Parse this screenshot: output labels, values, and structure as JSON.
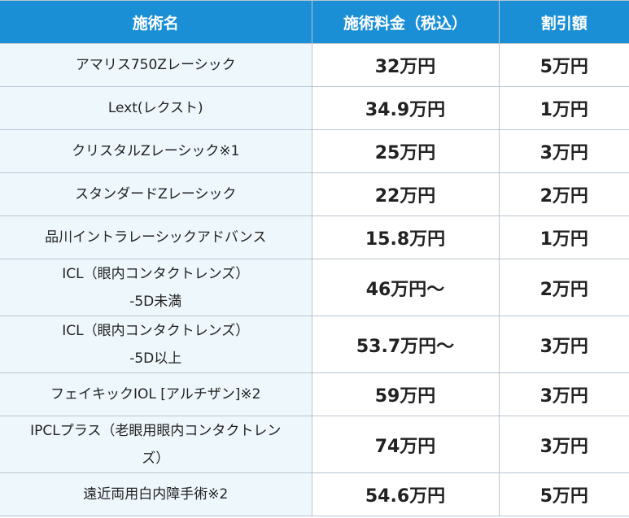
{
  "table": {
    "headers": [
      "施術名",
      "施術料金（税込）",
      "割引額"
    ],
    "rows": [
      {
        "name_lines": [
          "アマリス750Zレーシック"
        ],
        "price": "32万円",
        "discount": "5万円"
      },
      {
        "name_lines": [
          "Lext(レクスト)"
        ],
        "price": "34.9万円",
        "discount": "1万円"
      },
      {
        "name_lines": [
          "クリスタルZレーシック※1"
        ],
        "price": "25万円",
        "discount": "3万円"
      },
      {
        "name_lines": [
          "スタンダードZレーシック"
        ],
        "price": "22万円",
        "discount": "2万円"
      },
      {
        "name_lines": [
          "品川イントラレーシックアドバンス"
        ],
        "price": "15.8万円",
        "discount": "1万円"
      },
      {
        "name_lines": [
          "ICL（眼内コンタクトレンズ）",
          "-5D未満"
        ],
        "price": "46万円〜",
        "discount": "2万円"
      },
      {
        "name_lines": [
          "ICL（眼内コンタクトレンズ）",
          "-5D以上"
        ],
        "price": "53.7万円〜",
        "discount": "3万円"
      },
      {
        "name_lines": [
          "フェイキックIOL [アルチザン]※2"
        ],
        "price": "59万円",
        "discount": "3万円"
      },
      {
        "name_lines": [
          "IPCLプラス（老眼用眼内コンタクトレン",
          "ズ）"
        ],
        "price": "74万円",
        "discount": "3万円"
      },
      {
        "name_lines": [
          "遠近両用白内障手術※2"
        ],
        "price": "54.6万円",
        "discount": "5万円"
      }
    ]
  },
  "colors": {
    "header_bg": "#1a8fd6",
    "header_text": "#ffffff",
    "name_cell_bg": "#eef7fc",
    "border": "#b9c6d2"
  }
}
